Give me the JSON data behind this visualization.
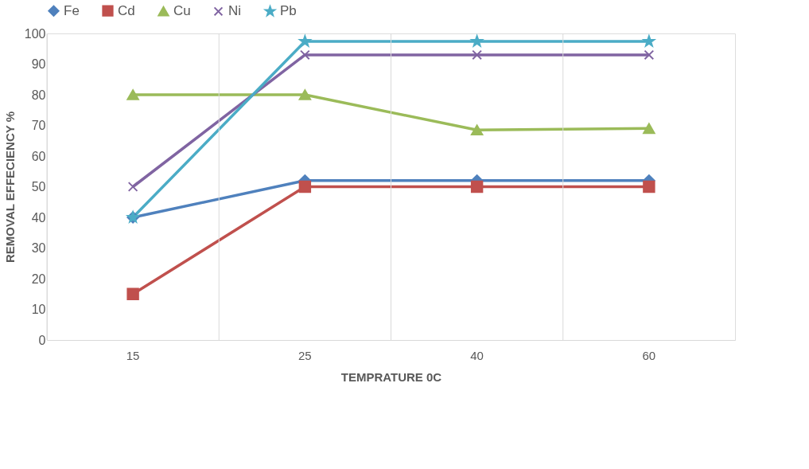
{
  "chart_data": {
    "type": "line",
    "xlabel": "TEMPRATURE 0C",
    "ylabel": "REMOVAL EFFECIENCY %",
    "categories": [
      "15",
      "25",
      "40",
      "60"
    ],
    "series": [
      {
        "name": "Fe",
        "color": "#4f81bd",
        "marker": "diamond",
        "values": [
          40,
          52,
          52,
          52
        ]
      },
      {
        "name": "Cd",
        "color": "#c0504d",
        "marker": "square",
        "values": [
          15,
          50,
          50,
          50
        ]
      },
      {
        "name": "Cu",
        "color": "#9bbb59",
        "marker": "triangle",
        "values": [
          80,
          80,
          68.5,
          69
        ]
      },
      {
        "name": "Ni",
        "color": "#8064a2",
        "marker": "cross",
        "values": [
          50,
          93,
          93,
          93
        ]
      },
      {
        "name": "Pb",
        "color": "#4bacc6",
        "marker": "star",
        "values": [
          40,
          97.4,
          97.4,
          97.4
        ]
      }
    ],
    "line_style": "solid",
    "ylim": [
      0,
      100
    ],
    "yticks": [
      0,
      10,
      20,
      30,
      40,
      50,
      60,
      70,
      80,
      90,
      100
    ],
    "grid": "x",
    "legend": "top"
  }
}
